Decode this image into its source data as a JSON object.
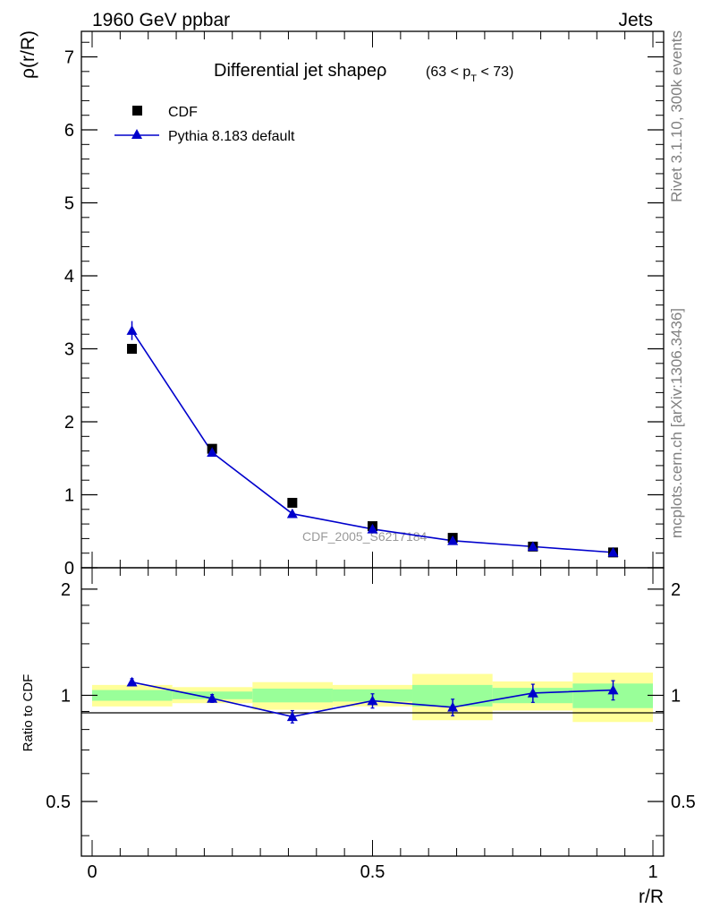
{
  "header": {
    "left": "1960 GeV ppbar",
    "right": "Jets"
  },
  "side_labels": {
    "top": "Rivet 3.1.10,  300k events",
    "bottom": "mcplots.cern.ch [arXiv:1306.3436]"
  },
  "colors": {
    "mc": "#0000cc",
    "data": "#000000",
    "band_inner": "#99ff99",
    "band_outer": "#ffff99"
  },
  "chart_data": [
    {
      "id": "main",
      "type": "scatter",
      "title_main": "Differential jet shapeρ",
      "title_range": [
        "(63 < p",
        "T",
        " < 73)"
      ],
      "ylabel": "ρ(r/R)",
      "xlabel": "",
      "xlim": [
        0,
        1
      ],
      "ylim": [
        0,
        7.35
      ],
      "yticks": [
        "0",
        "1",
        "2",
        "3",
        "4",
        "5",
        "6",
        "7"
      ],
      "watermark": "CDF_2005_S6217184",
      "legend": [
        {
          "label": "CDF",
          "marker": "square"
        },
        {
          "label": "Pythia 8.183 default",
          "marker": "triangle"
        }
      ],
      "x": [
        0.071,
        0.214,
        0.357,
        0.5,
        0.643,
        0.786,
        0.929
      ],
      "series": [
        {
          "name": "CDF",
          "values": [
            3.0,
            1.63,
            0.89,
            0.57,
            0.41,
            0.29,
            0.21
          ]
        },
        {
          "name": "Pythia 8.183 default",
          "values": [
            3.25,
            1.58,
            0.74,
            0.53,
            0.37,
            0.29,
            0.21
          ],
          "errors": [
            0.13,
            0.04,
            0.03,
            0.02,
            0.02,
            0.01,
            0.01
          ]
        }
      ]
    },
    {
      "id": "ratio",
      "type": "line",
      "ylabel": "Ratio to CDF",
      "xlabel": "r/R",
      "xlim": [
        0,
        1
      ],
      "ylim": [
        0.35,
        2.3
      ],
      "yticks": [
        {
          "value": 0.5,
          "label": "0.5"
        },
        {
          "value": 1,
          "label": "1"
        },
        {
          "value": 2,
          "label": "2"
        }
      ],
      "xticks": [
        {
          "value": 0,
          "label": "0"
        },
        {
          "value": 0.5,
          "label": "0.5"
        },
        {
          "value": 1,
          "label": "1"
        }
      ],
      "bins": [
        {
          "lo": 0.0,
          "hi": 0.143,
          "inner": [
            0.965,
            1.035
          ],
          "outer": [
            0.93,
            1.07
          ]
        },
        {
          "lo": 0.143,
          "hi": 0.286,
          "inner": [
            0.975,
            1.025
          ],
          "outer": [
            0.95,
            1.055
          ]
        },
        {
          "lo": 0.286,
          "hi": 0.429,
          "inner": [
            0.955,
            1.045
          ],
          "outer": [
            0.91,
            1.09
          ]
        },
        {
          "lo": 0.429,
          "hi": 0.571,
          "inner": [
            0.96,
            1.04
          ],
          "outer": [
            0.93,
            1.07
          ]
        },
        {
          "lo": 0.571,
          "hi": 0.714,
          "inner": [
            0.93,
            1.07
          ],
          "outer": [
            0.85,
            1.15
          ]
        },
        {
          "lo": 0.714,
          "hi": 0.857,
          "inner": [
            0.95,
            1.05
          ],
          "outer": [
            0.905,
            1.095
          ]
        },
        {
          "lo": 0.857,
          "hi": 1.0,
          "inner": [
            0.92,
            1.08
          ],
          "outer": [
            0.84,
            1.16
          ]
        }
      ],
      "x": [
        0.071,
        0.214,
        0.357,
        0.5,
        0.643,
        0.786,
        0.929
      ],
      "series": [
        {
          "name": "Pythia 8.183 default",
          "values": [
            1.09,
            0.98,
            0.87,
            0.965,
            0.925,
            1.015,
            1.035
          ],
          "errors": [
            0.025,
            0.025,
            0.035,
            0.045,
            0.05,
            0.06,
            0.065
          ]
        }
      ]
    }
  ]
}
